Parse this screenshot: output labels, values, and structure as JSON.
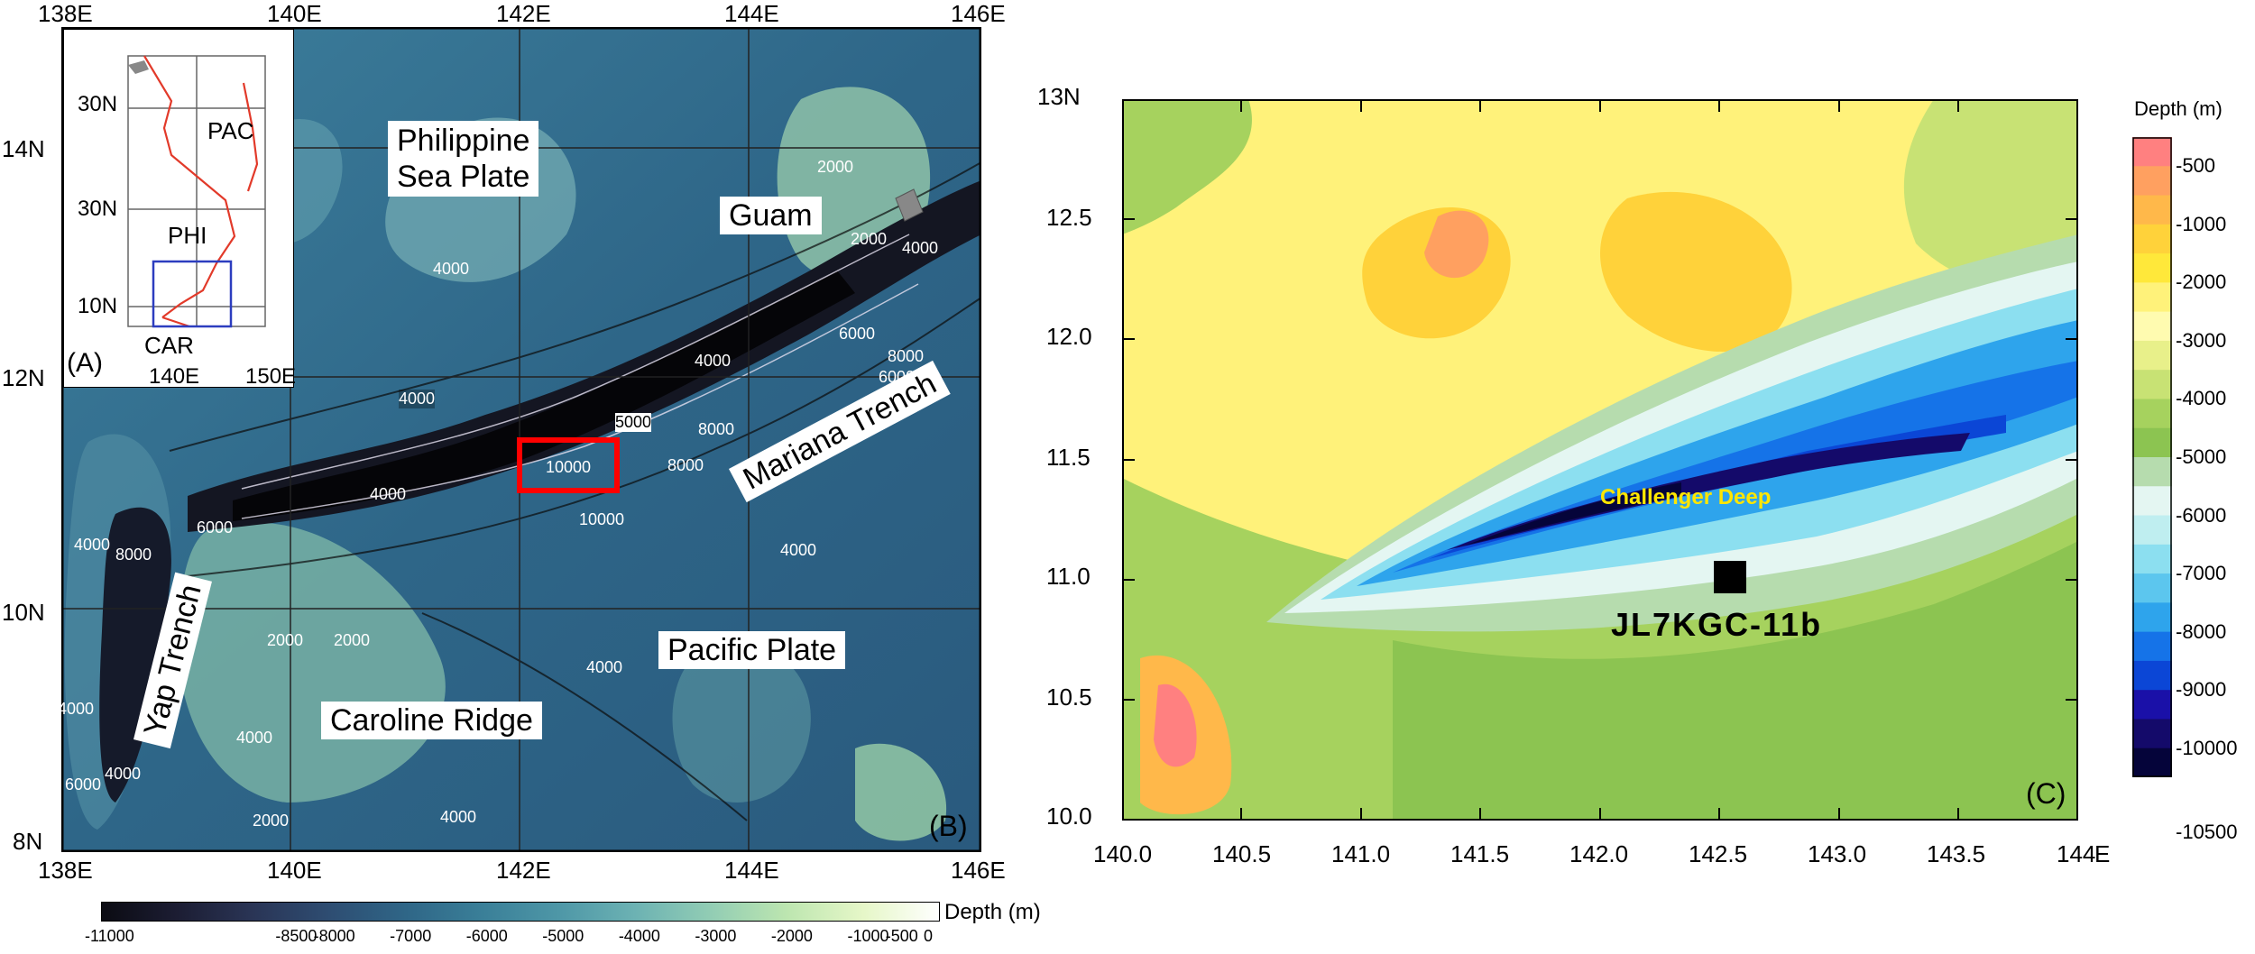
{
  "panel_b": {
    "letter": "(B)",
    "top_lon_labels": [
      "138E",
      "140E",
      "142E",
      "144E",
      "146E"
    ],
    "bottom_lon_labels": [
      "138E",
      "140E",
      "142E",
      "144E",
      "146E"
    ],
    "lat_labels": [
      "14N",
      "12N",
      "10N",
      "8N"
    ],
    "feature_labels": {
      "philippine_sea_plate_line1": "Philippine",
      "philippine_sea_plate_line2": "Sea Plate",
      "guam": "Guam",
      "mariana_trench": "Mariana Trench",
      "yap_trench": "Yap Trench",
      "pacific_plate": "Pacific Plate",
      "caroline_ridge": "Caroline Ridge"
    },
    "contour_labels": [
      "4000",
      "4000",
      "4000",
      "2000",
      "2000",
      "4000",
      "6000",
      "8000",
      "6000",
      "5000",
      "10000",
      "8000",
      "8000",
      "10000",
      "4000",
      "6000",
      "4000",
      "8000",
      "2000",
      "2000",
      "4000",
      "4000",
      "4000",
      "4000",
      "2000",
      "4000",
      "6000",
      "4000"
    ],
    "colorbar": {
      "title": "Depth (m)",
      "ticks": [
        "-11000",
        "-8500",
        "-8000",
        "-7000",
        "-6000",
        "-5000",
        "-4000",
        "-3000",
        "-2000",
        "-1000",
        "-500",
        "0"
      ],
      "colors": [
        "#0b0b12",
        "#1c1d33",
        "#2a3556",
        "#2e4d72",
        "#2f6687",
        "#3a7f98",
        "#4e97a7",
        "#6cb2b3",
        "#92cdb4",
        "#bde6b0",
        "#e6f7c8",
        "#ffffff"
      ]
    }
  },
  "panel_a": {
    "letter": "(A)",
    "lat_labels": [
      "30N",
      "30N",
      "10N"
    ],
    "lon_labels": [
      "140E",
      "150E"
    ],
    "plate_labels": {
      "pac": "PAC",
      "phi": "PHI",
      "car": "CAR"
    }
  },
  "panel_c": {
    "letter": "(C)",
    "lat_labels": [
      "13N",
      "12.5",
      "12.0",
      "11.5",
      "11.0",
      "10.5",
      "10.0"
    ],
    "lon_labels": [
      "140.0",
      "140.5",
      "141.0",
      "141.5",
      "142.0",
      "142.5",
      "143.0",
      "143.5",
      "144",
      "E"
    ],
    "feature_label": "Challenger Deep",
    "site_label": "JL7KGC-11b",
    "colorbar": {
      "title": "Depth (m)",
      "labels": [
        "-500",
        "-1000",
        "-2000",
        "-3000",
        "-4000",
        "-5000",
        "-6000",
        "-7000",
        "-8000",
        "-9000",
        "-10000",
        "-10500"
      ],
      "colors": [
        "#ff8080",
        "#ffa060",
        "#ffb84a",
        "#ffd23a",
        "#ffe83a",
        "#fff27a",
        "#fffbb0",
        "#e8f08a",
        "#c8e274",
        "#a6d25e",
        "#8cc451",
        "#b6dcae",
        "#e4f6f2",
        "#bfeef0",
        "#8cdff0",
        "#5cc6ee",
        "#2ea4ec",
        "#1573e8",
        "#0b46d6",
        "#1a10a8",
        "#140a6a",
        "#05043a"
      ]
    }
  }
}
